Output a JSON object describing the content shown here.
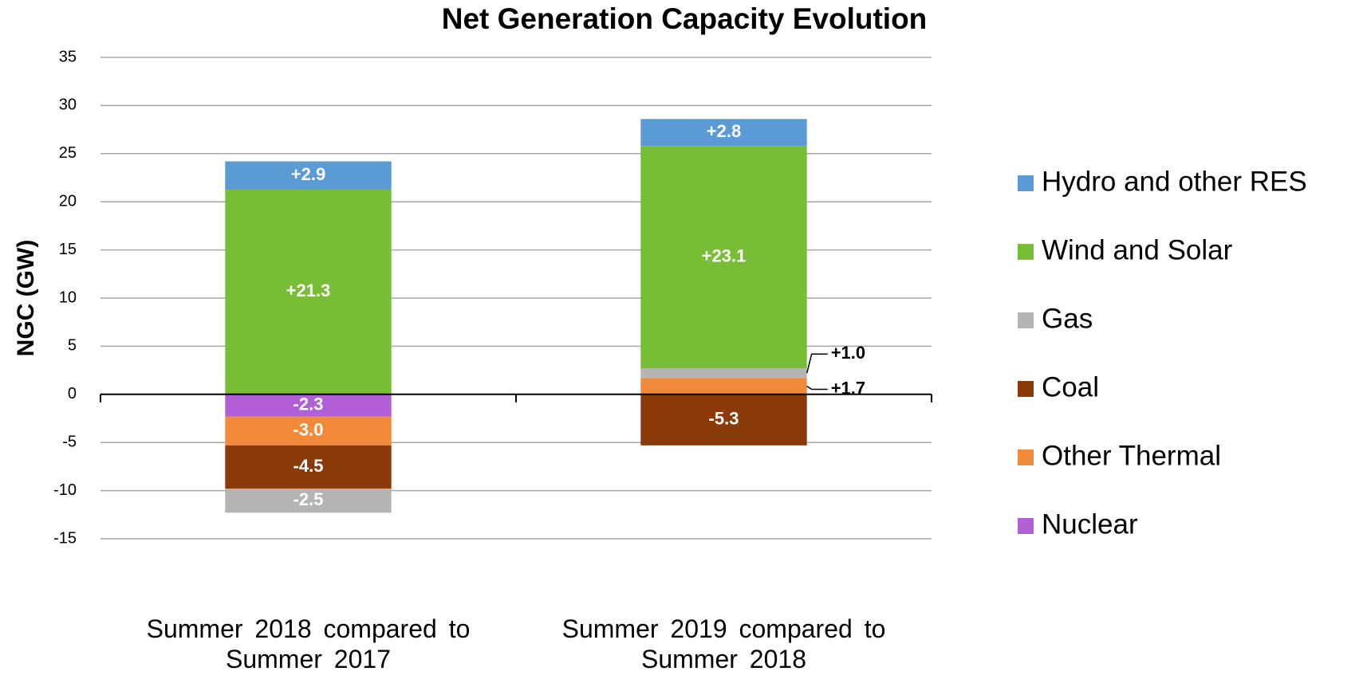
{
  "chart_data": {
    "type": "stacked_bar",
    "title": "Net Generation Capacity Evolution",
    "y_label": "NGC (GW)",
    "categories": [
      "Summer 2018 compared to Summer 2017",
      "Summer 2019 compared to Summer 2018"
    ],
    "series": [
      {
        "name": "Hydro and other RES",
        "color": "#5b9bd5",
        "values": [
          2.9,
          2.8
        ],
        "value_labels": [
          "+2.9",
          "+2.8"
        ]
      },
      {
        "name": "Wind and Solar",
        "color": "#77bd35",
        "values": [
          21.3,
          23.1
        ],
        "value_labels": [
          "+21.3",
          "+23.1"
        ]
      },
      {
        "name": "Gas",
        "color": "#b4b4b4",
        "values": [
          -2.5,
          1.0
        ],
        "value_labels": [
          "-2.5",
          "+1.0"
        ]
      },
      {
        "name": "Coal",
        "color": "#8b3a0a",
        "values": [
          -4.5,
          -5.3
        ],
        "value_labels": [
          "-4.5",
          "-5.3"
        ]
      },
      {
        "name": "Other Thermal",
        "color": "#f28a3c",
        "values": [
          -3.0,
          1.7
        ],
        "value_labels": [
          "-3.0",
          "+1.7"
        ]
      },
      {
        "name": "Nuclear",
        "color": "#b05fd6",
        "values": [
          -2.3,
          null
        ],
        "value_labels": [
          "-2.3",
          null
        ]
      }
    ],
    "ylim": [
      -15,
      35
    ],
    "yticks": [
      -15,
      -10,
      -5,
      0,
      5,
      10,
      15,
      20,
      25,
      30,
      35
    ],
    "grid": true,
    "legend": "right"
  }
}
